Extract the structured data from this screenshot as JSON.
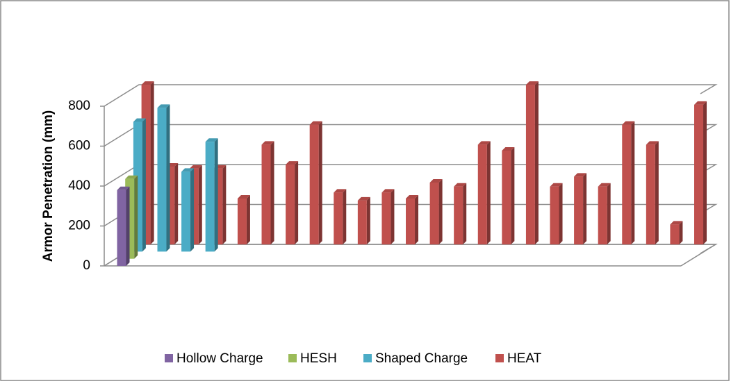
{
  "chart_data": {
    "type": "bar3d",
    "y_label": "Armor Penetration (mm)",
    "categories": [
      null,
      null,
      null,
      null,
      null,
      null,
      null,
      null,
      null,
      null,
      null,
      null,
      null,
      null,
      null,
      null,
      null,
      null,
      null,
      null,
      null,
      null,
      null,
      null
    ],
    "series": [
      {
        "name": "Hollow Charge",
        "color": "#8064a2",
        "values": [
          380,
          null,
          null,
          null,
          null,
          null,
          null,
          null,
          null,
          null,
          null,
          null,
          null,
          null,
          null,
          null,
          null,
          null,
          null,
          null,
          null,
          null,
          null,
          null
        ]
      },
      {
        "name": "HESH",
        "color": "#9bbb59",
        "values": [
          400,
          null,
          null,
          null,
          null,
          null,
          null,
          null,
          null,
          null,
          null,
          null,
          null,
          null,
          null,
          null,
          null,
          null,
          null,
          null,
          null,
          null,
          null,
          null
        ]
      },
      {
        "name": "Shaped Charge",
        "color": "#4bacc6",
        "values": [
          650,
          720,
          400,
          550,
          null,
          null,
          null,
          null,
          null,
          null,
          null,
          null,
          null,
          null,
          null,
          null,
          null,
          null,
          null,
          null,
          null,
          null,
          null,
          null
        ]
      },
      {
        "name": "HEAT",
        "color": "#c0504d",
        "values": [
          800,
          390,
          380,
          380,
          230,
          500,
          400,
          600,
          260,
          220,
          260,
          230,
          310,
          290,
          500,
          470,
          800,
          290,
          340,
          290,
          600,
          500,
          100,
          700
        ]
      }
    ],
    "ylim": [
      0,
      800
    ],
    "yticks": [
      0,
      200,
      400,
      600,
      800
    ],
    "grid": true,
    "legend": "bottom"
  }
}
